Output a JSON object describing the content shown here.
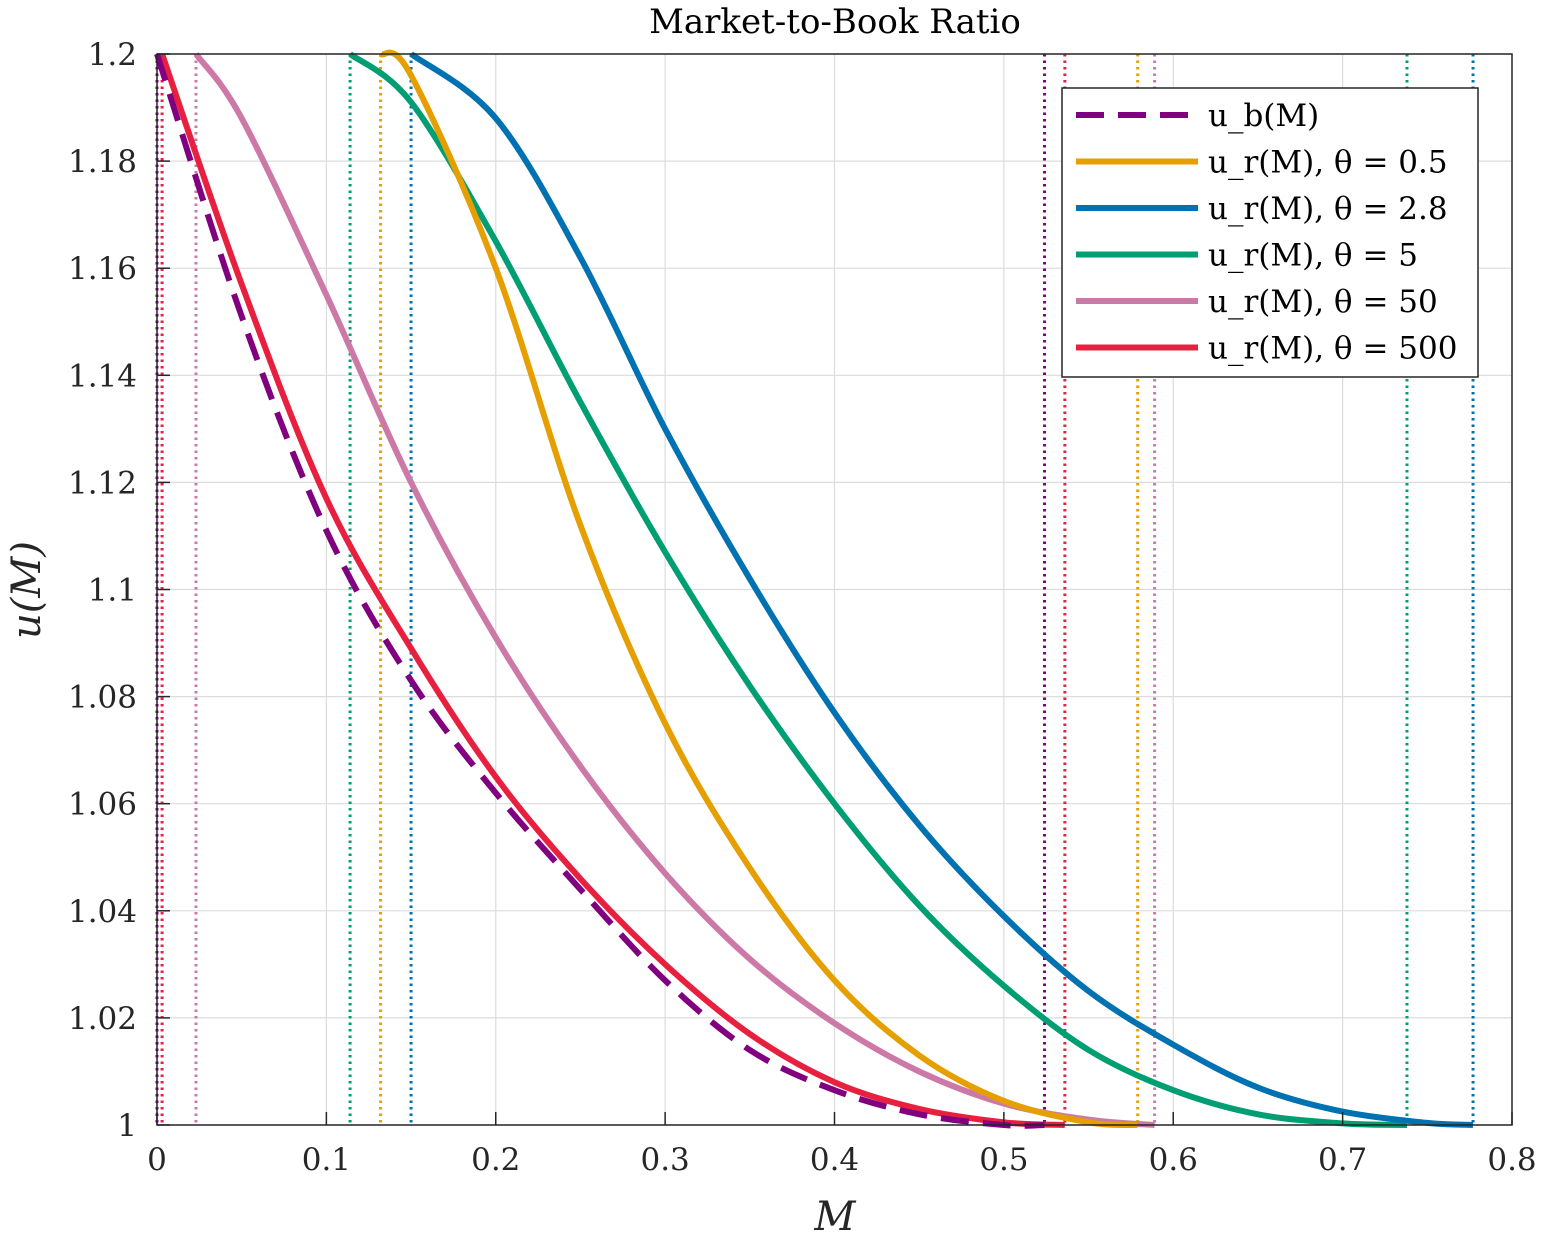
{
  "chart_data": {
    "type": "line",
    "title": "Market-to-Book Ratio",
    "xlabel": "M",
    "ylabel": "u(M)",
    "xlim": [
      0,
      0.8
    ],
    "ylim": [
      1,
      1.2
    ],
    "xticks": [
      "0",
      "0.1",
      "0.2",
      "0.3",
      "0.4",
      "0.5",
      "0.6",
      "0.7",
      "0.8"
    ],
    "yticks": [
      "1",
      "1.02",
      "1.04",
      "1.06",
      "1.08",
      "1.1",
      "1.12",
      "1.14",
      "1.16",
      "1.18",
      "1.2"
    ],
    "grid": true,
    "legend_position": "top-right",
    "series": [
      {
        "name": "u_b(M)",
        "color": "#800080",
        "style": "dashed",
        "lower_bound": 0.0,
        "upper_bound": 0.524,
        "points": [
          [
            0.0,
            1.2
          ],
          [
            0.05,
            1.151
          ],
          [
            0.1,
            1.111
          ],
          [
            0.15,
            1.083
          ],
          [
            0.2,
            1.062
          ],
          [
            0.25,
            1.044
          ],
          [
            0.3,
            1.027
          ],
          [
            0.35,
            1.014
          ],
          [
            0.4,
            1.0065
          ],
          [
            0.45,
            1.002
          ],
          [
            0.5,
            1.0
          ],
          [
            0.524,
            1.0
          ]
        ]
      },
      {
        "name": "u_r(M), θ = 0.5",
        "color": "#E69F00",
        "style": "solid",
        "lower_bound": 0.132,
        "upper_bound": 0.579,
        "points": [
          [
            0.132,
            1.2
          ],
          [
            0.15,
            1.196
          ],
          [
            0.2,
            1.16
          ],
          [
            0.25,
            1.112
          ],
          [
            0.3,
            1.075
          ],
          [
            0.35,
            1.048
          ],
          [
            0.4,
            1.027
          ],
          [
            0.45,
            1.013
          ],
          [
            0.5,
            1.0045
          ],
          [
            0.55,
            1.0005
          ],
          [
            0.579,
            1.0
          ]
        ]
      },
      {
        "name": "u_r(M), θ = 2.8",
        "color": "#0072B2",
        "style": "solid",
        "lower_bound": 0.15,
        "upper_bound": 0.777,
        "points": [
          [
            0.15,
            1.2
          ],
          [
            0.2,
            1.188
          ],
          [
            0.25,
            1.162
          ],
          [
            0.3,
            1.13
          ],
          [
            0.35,
            1.102
          ],
          [
            0.4,
            1.077
          ],
          [
            0.45,
            1.056
          ],
          [
            0.5,
            1.039
          ],
          [
            0.55,
            1.025
          ],
          [
            0.6,
            1.015
          ],
          [
            0.65,
            1.007
          ],
          [
            0.7,
            1.0025
          ],
          [
            0.75,
            1.0004
          ],
          [
            0.777,
            1.0
          ]
        ]
      },
      {
        "name": "u_r(M), θ = 5",
        "color": "#009E73",
        "style": "solid",
        "lower_bound": 0.114,
        "upper_bound": 0.738,
        "points": [
          [
            0.114,
            1.2
          ],
          [
            0.15,
            1.191
          ],
          [
            0.2,
            1.165
          ],
          [
            0.25,
            1.135
          ],
          [
            0.3,
            1.107
          ],
          [
            0.35,
            1.082
          ],
          [
            0.4,
            1.06
          ],
          [
            0.45,
            1.041
          ],
          [
            0.5,
            1.026
          ],
          [
            0.55,
            1.014
          ],
          [
            0.6,
            1.0065
          ],
          [
            0.65,
            1.002
          ],
          [
            0.7,
            1.0003
          ],
          [
            0.738,
            1.0
          ]
        ]
      },
      {
        "name": "u_r(M), θ = 50",
        "color": "#CC79A7",
        "style": "solid",
        "lower_bound": 0.023,
        "upper_bound": 0.589,
        "points": [
          [
            0.023,
            1.2
          ],
          [
            0.05,
            1.188
          ],
          [
            0.1,
            1.155
          ],
          [
            0.15,
            1.12
          ],
          [
            0.2,
            1.091
          ],
          [
            0.25,
            1.067
          ],
          [
            0.3,
            1.047
          ],
          [
            0.35,
            1.031
          ],
          [
            0.4,
            1.019
          ],
          [
            0.45,
            1.01
          ],
          [
            0.5,
            1.004
          ],
          [
            0.55,
            1.001
          ],
          [
            0.589,
            1.0
          ]
        ]
      },
      {
        "name": "u_r(M), θ = 500",
        "color": "#E8203F",
        "style": "solid",
        "lower_bound": 0.003,
        "upper_bound": 0.536,
        "points": [
          [
            0.003,
            1.2
          ],
          [
            0.05,
            1.157
          ],
          [
            0.1,
            1.117
          ],
          [
            0.15,
            1.089
          ],
          [
            0.2,
            1.065
          ],
          [
            0.25,
            1.046
          ],
          [
            0.3,
            1.03
          ],
          [
            0.35,
            1.017
          ],
          [
            0.4,
            1.008
          ],
          [
            0.45,
            1.003
          ],
          [
            0.5,
            1.0005
          ],
          [
            0.536,
            1.0
          ]
        ]
      }
    ]
  }
}
